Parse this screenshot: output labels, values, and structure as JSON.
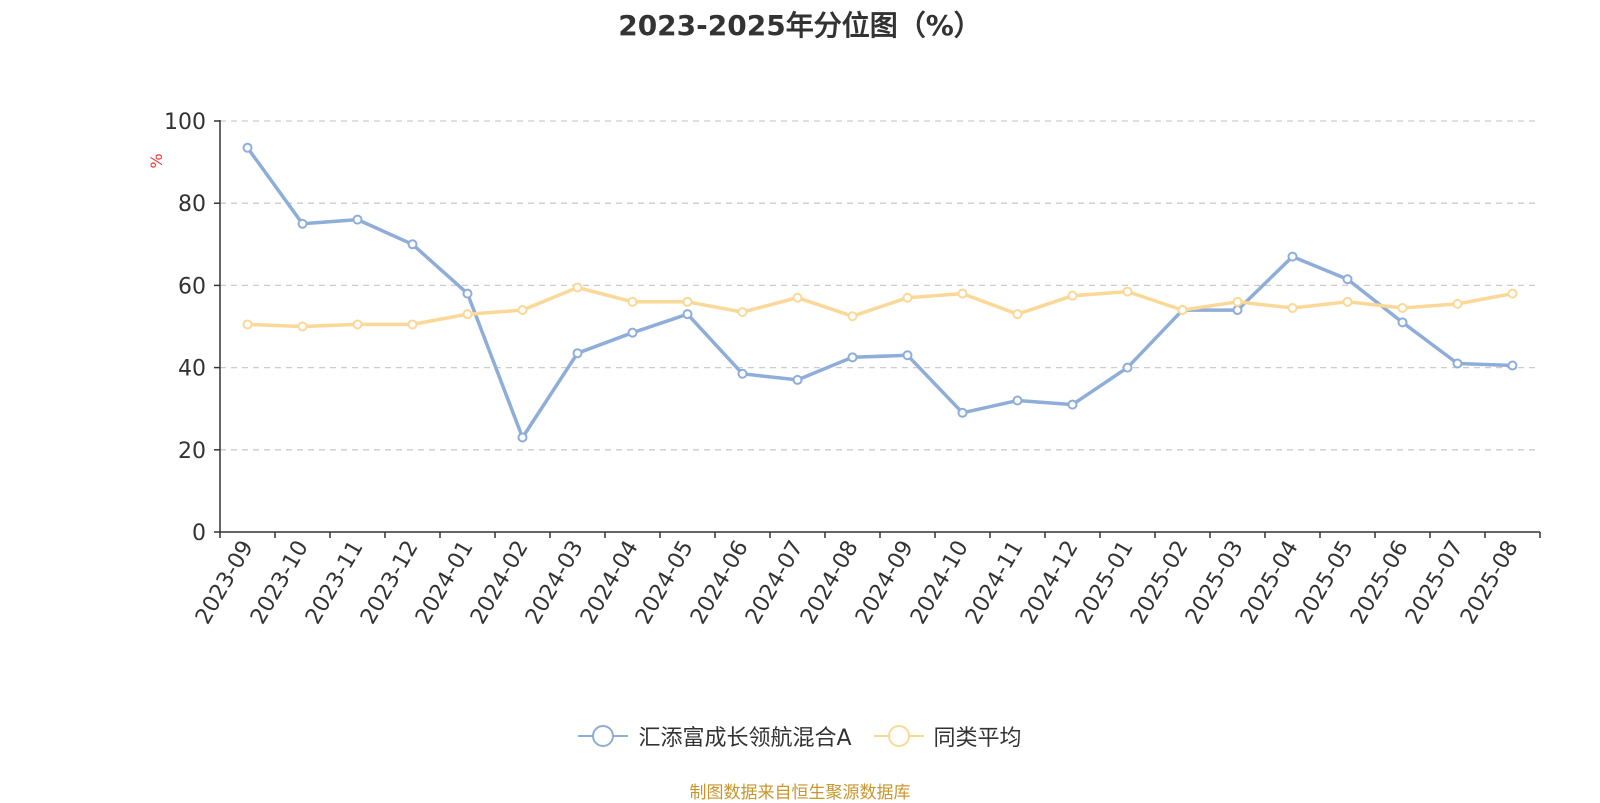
{
  "chart_data": {
    "type": "line",
    "title": "2023-2025年分位图（%）",
    "ylabel": "%",
    "xlabel": "",
    "ylim": [
      0,
      100
    ],
    "yticks": [
      0,
      20,
      40,
      60,
      80,
      100
    ],
    "grid": true,
    "legend_position": "bottom",
    "categories": [
      "2023-09",
      "2023-10",
      "2023-11",
      "2023-12",
      "2024-01",
      "2024-02",
      "2024-03",
      "2024-04",
      "2024-05",
      "2024-06",
      "2024-07",
      "2024-08",
      "2024-09",
      "2024-10",
      "2024-11",
      "2024-12",
      "2025-01",
      "2025-02",
      "2025-03",
      "2025-04",
      "2025-05",
      "2025-06",
      "2025-07",
      "2025-08"
    ],
    "series": [
      {
        "name": "汇添富成长领航混合A",
        "color": "#8eadd8",
        "values": [
          93.5,
          75.0,
          76.0,
          70.0,
          58.0,
          23.0,
          43.5,
          48.5,
          53.0,
          38.5,
          37.0,
          42.5,
          43.0,
          29.0,
          32.0,
          31.0,
          40.0,
          54.0,
          54.0,
          67.0,
          61.5,
          51.0,
          41.0,
          40.5
        ]
      },
      {
        "name": "同类平均",
        "color": "#fbd898",
        "values": [
          50.5,
          50.0,
          50.5,
          50.5,
          53.0,
          54.0,
          59.5,
          56.0,
          56.0,
          53.5,
          57.0,
          52.5,
          57.0,
          58.0,
          53.0,
          57.5,
          58.5,
          54.0,
          56.0,
          54.5,
          56.0,
          54.5,
          55.5,
          58.0
        ]
      }
    ]
  },
  "source_note": "制图数据来自恒生聚源数据库"
}
